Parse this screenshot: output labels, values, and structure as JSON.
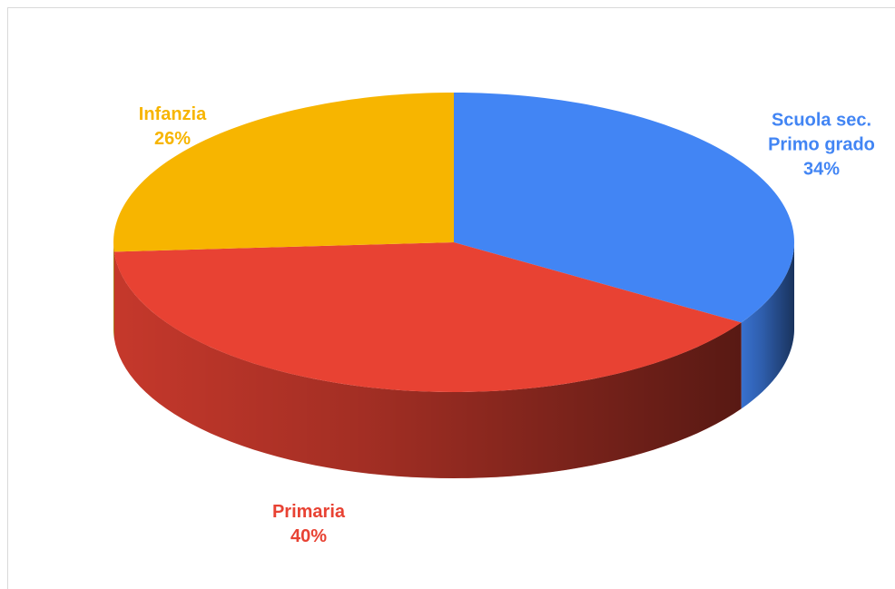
{
  "chart_data": {
    "type": "pie3d",
    "categories": [
      "Scuola sec. Primo grado",
      "Primaria",
      "Infanzia"
    ],
    "values": [
      34,
      40,
      26
    ],
    "value_labels": [
      "34%",
      "40%",
      "26%"
    ],
    "colors": [
      "#4285f4",
      "#e84233",
      "#f7b500"
    ]
  }
}
